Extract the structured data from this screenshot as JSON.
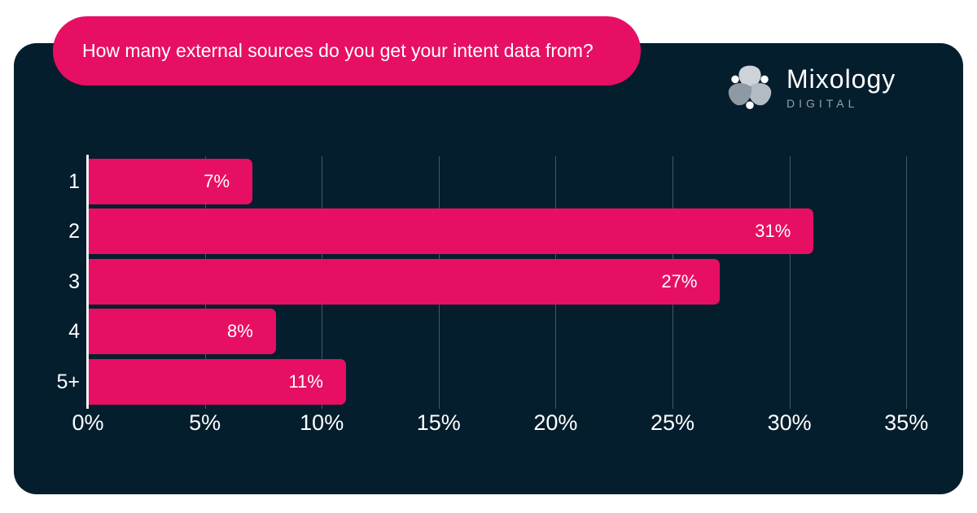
{
  "banner": {
    "text": "How many external sources do you get your intent data from?",
    "background": "#E70F63",
    "text_color": "#FFFFFF"
  },
  "logo": {
    "name": "Mixology",
    "subtitle": "DIGITAL",
    "name_color": "#FFFFFF",
    "subtitle_color": "#93A0AA",
    "mark_icon": "triskelion-mark",
    "mark_colors": [
      "#CDD3D8",
      "#B2BBC2",
      "#8E9AA3",
      "#FFFFFF"
    ]
  },
  "card": {
    "background": "#051E2E",
    "page_background": "#FFFFFF"
  },
  "chart_data": {
    "type": "bar",
    "orientation": "horizontal",
    "title": "How many external sources do you get your intent data from?",
    "categories": [
      "1",
      "2",
      "3",
      "4",
      "5+"
    ],
    "values": [
      7,
      31,
      27,
      8,
      11
    ],
    "value_labels": [
      "7%",
      "31%",
      "27%",
      "8%",
      "11%"
    ],
    "x_ticks": [
      "0%",
      "5%",
      "10%",
      "15%",
      "20%",
      "25%",
      "30%",
      "35%"
    ],
    "xlim": [
      0,
      35
    ],
    "grid": "vertical",
    "bar_color": "#E70F63",
    "value_label_position": "inside-right",
    "axis_line_color": "#EFF3F5",
    "gridline_color": "rgba(255,255,255,0.26)",
    "tick_label_color": "#FFFFFF",
    "category_label_color": "#FFFFFF"
  }
}
